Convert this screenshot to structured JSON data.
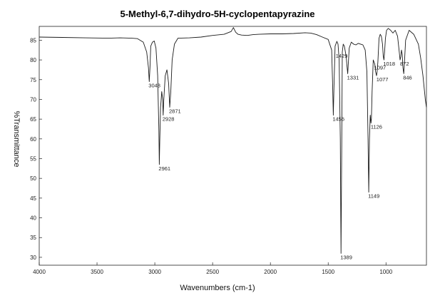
{
  "chart_data": {
    "type": "line",
    "title": "5-Methyl-6,7-dihydro-5H-cyclopentapyrazine",
    "xlabel": "Wavenumbers (cm-1)",
    "ylabel": "%Transmittance",
    "xlim": [
      4000,
      650
    ],
    "ylim": [
      28,
      88.5
    ],
    "x_ticks": [
      4000,
      3500,
      3000,
      2500,
      2000,
      1500,
      1000
    ],
    "y_ticks": [
      30,
      35,
      40,
      45,
      50,
      55,
      60,
      65,
      70,
      75,
      80,
      85
    ],
    "grid": false,
    "series": [
      {
        "x": [
          4000,
          3800,
          3600,
          3400,
          3300,
          3200,
          3150,
          3100,
          3070,
          3055,
          3048,
          3042,
          3035,
          3020,
          3005,
          2990,
          2975,
          2965,
          2961,
          2957,
          2950,
          2940,
          2932,
          2928,
          2922,
          2910,
          2895,
          2880,
          2871,
          2862,
          2850,
          2830,
          2800,
          2700,
          2600,
          2500,
          2400,
          2340,
          2320,
          2300,
          2280,
          2250,
          2200,
          2150,
          2100,
          2000,
          1900,
          1800,
          1700,
          1650,
          1600,
          1550,
          1500,
          1470,
          1462,
          1456,
          1450,
          1440,
          1425,
          1415,
          1405,
          1395,
          1389,
          1383,
          1378,
          1370,
          1360,
          1345,
          1336,
          1331,
          1326,
          1318,
          1300,
          1280,
          1260,
          1240,
          1220,
          1200,
          1180,
          1165,
          1155,
          1149,
          1143,
          1136,
          1130,
          1126,
          1120,
          1110,
          1097,
          1090,
          1082,
          1077,
          1070,
          1060,
          1050,
          1040,
          1030,
          1024,
          1018,
          1012,
          1005,
          995,
          980,
          960,
          940,
          920,
          900,
          885,
          878,
          872,
          866,
          860,
          853,
          846,
          840,
          830,
          800,
          760,
          720,
          700,
          680,
          660,
          650
        ],
        "y": [
          85.8,
          85.7,
          85.6,
          85.5,
          85.6,
          85.5,
          85.4,
          84.5,
          82,
          78,
          74.5,
          78,
          83.5,
          84.5,
          84.8,
          83,
          76,
          62,
          53.5,
          60,
          68,
          72,
          70,
          66,
          70,
          76,
          77.5,
          74,
          68,
          72,
          80,
          84,
          85.5,
          85.6,
          85.8,
          86.2,
          86.5,
          87.2,
          88.2,
          87,
          86.5,
          86.3,
          86.2,
          86.4,
          86.5,
          86.6,
          86.6,
          86.7,
          86.9,
          86.8,
          86.4,
          85.8,
          85.2,
          82.5,
          74,
          66,
          73,
          83.5,
          84.7,
          84,
          80,
          60,
          31,
          58,
          82,
          84,
          83.5,
          81,
          78,
          76.5,
          79,
          83,
          84.5,
          84,
          83.8,
          84.2,
          84,
          83.8,
          82.5,
          77,
          60,
          46.5,
          60,
          66,
          64,
          65,
          72,
          80,
          79,
          77,
          76,
          77,
          79.5,
          85.5,
          86.5,
          86,
          84,
          81,
          80,
          82,
          85.5,
          87.5,
          88,
          87.5,
          86.8,
          87.5,
          86,
          82,
          80,
          80.8,
          82.5,
          81.5,
          78,
          76.5,
          79.5,
          85,
          87.5,
          86.5,
          84,
          80.5,
          76,
          70,
          68
        ]
      }
    ],
    "peak_labels": [
      {
        "x": 3048,
        "y": 74.5,
        "text": "3048"
      },
      {
        "x": 2961,
        "y": 53.5,
        "text": "2961"
      },
      {
        "x": 2928,
        "y": 66,
        "text": "2928"
      },
      {
        "x": 2871,
        "y": 68,
        "text": "2871"
      },
      {
        "x": 1456,
        "y": 66,
        "text": "1456"
      },
      {
        "x": 1429,
        "y": 82,
        "text": "1429"
      },
      {
        "x": 1389,
        "y": 31,
        "text": "1389"
      },
      {
        "x": 1331,
        "y": 76.5,
        "text": "1331"
      },
      {
        "x": 1149,
        "y": 46.5,
        "text": "1149"
      },
      {
        "x": 1126,
        "y": 64,
        "text": "1126"
      },
      {
        "x": 1097,
        "y": 79,
        "text": "1097"
      },
      {
        "x": 1077,
        "y": 76,
        "text": "1077"
      },
      {
        "x": 1018,
        "y": 80,
        "text": "1018"
      },
      {
        "x": 872,
        "y": 80,
        "text": "872"
      },
      {
        "x": 846,
        "y": 76.5,
        "text": "846"
      }
    ]
  }
}
